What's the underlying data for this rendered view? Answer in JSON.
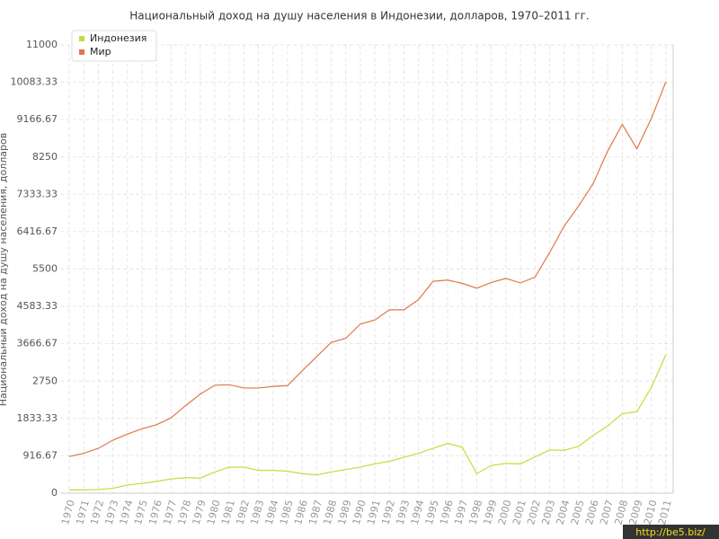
{
  "chart_data": {
    "type": "line",
    "title": "Национальный доход на душу населения в Индонезии, долларов, 1970–2011 гг.",
    "y_label": "Национальный доход на душу населения, долларов",
    "watermark": "http://be5.biz/",
    "categories": [
      "1970",
      "1971",
      "1972",
      "1973",
      "1974",
      "1975",
      "1976",
      "1977",
      "1978",
      "1979",
      "1980",
      "1981",
      "1982",
      "1983",
      "1984",
      "1985",
      "1986",
      "1987",
      "1988",
      "1989",
      "1990",
      "1991",
      "1992",
      "1993",
      "1994",
      "1995",
      "1996",
      "1997",
      "1998",
      "1999",
      "2000",
      "2001",
      "2002",
      "2003",
      "2004",
      "2005",
      "2006",
      "2007",
      "2008",
      "2009",
      "2010",
      "2011"
    ],
    "series": [
      {
        "name": "Индонезия",
        "color": "#c3dc3c",
        "values": [
          80,
          80,
          90,
          120,
          200,
          240,
          290,
          350,
          380,
          370,
          520,
          640,
          640,
          560,
          560,
          540,
          480,
          450,
          520,
          580,
          640,
          720,
          780,
          880,
          980,
          1100,
          1220,
          1130,
          480,
          680,
          730,
          720,
          890,
          1060,
          1050,
          1150,
          1420,
          1650,
          1950,
          2000,
          2600,
          3400
        ]
      },
      {
        "name": "Мир",
        "color": "#e0774a",
        "values": [
          900,
          980,
          1100,
          1300,
          1450,
          1580,
          1680,
          1850,
          2150,
          2430,
          2650,
          2660,
          2580,
          2580,
          2620,
          2640,
          3000,
          3350,
          3700,
          3800,
          4150,
          4250,
          4500,
          4500,
          4750,
          5200,
          5230,
          5150,
          5030,
          5170,
          5270,
          5160,
          5300,
          5900,
          6550,
          7050,
          7600,
          8400,
          9050,
          8450,
          9200,
          10100
        ]
      }
    ],
    "ylim": [
      0,
      11000
    ],
    "yticks": [
      0,
      916.67,
      1833.33,
      2750,
      3666.67,
      4583.33,
      5500,
      6416.67,
      7333.33,
      8250,
      9166.67,
      10083.33,
      11000
    ],
    "grid": true,
    "legend": "top-left"
  }
}
